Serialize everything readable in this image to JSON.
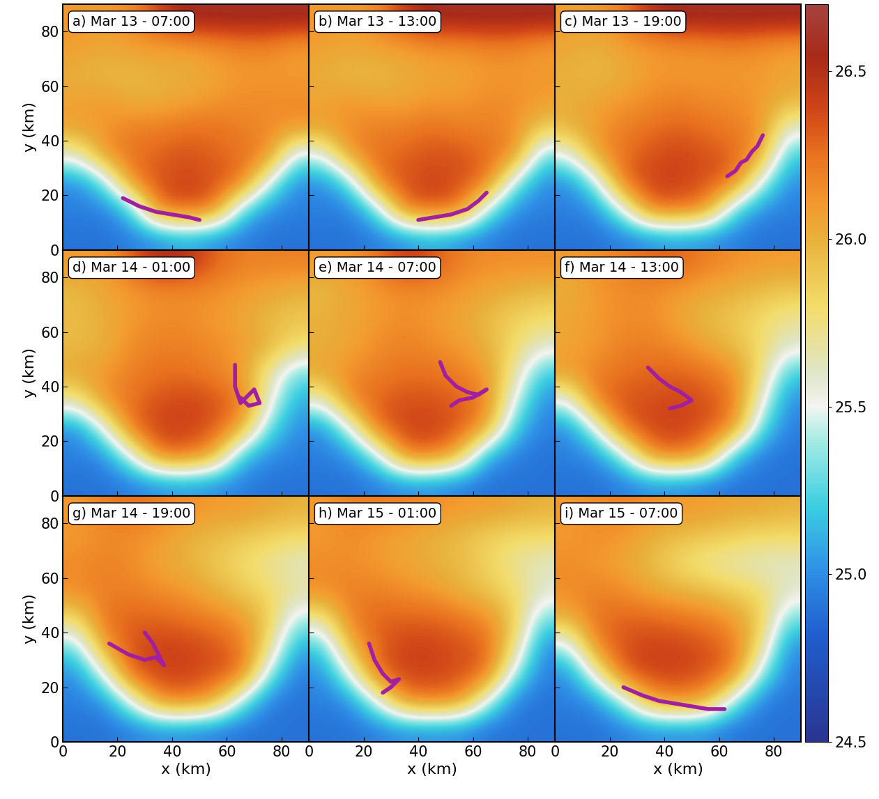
{
  "chart_data": {
    "type": "heatmap",
    "xlabel": "x (km)",
    "ylabel": "y (km)",
    "xlim": [
      0,
      90
    ],
    "ylim": [
      0,
      90
    ],
    "xticks": [
      0,
      20,
      40,
      60,
      80
    ],
    "yticks": [
      0,
      20,
      40,
      60,
      80
    ],
    "colorbar": {
      "range": [
        24.5,
        26.7
      ],
      "ticks": [
        24.5,
        25.0,
        25.5,
        26.0,
        26.5
      ]
    },
    "track_color": "#a020a0",
    "panels": [
      {
        "title": "a) Mar 13 - 07:00",
        "cells": [
          [
            26.1,
            26.1,
            26.15,
            26.4,
            26.6,
            26.6,
            26.6,
            26.6,
            26.6
          ],
          [
            26.1,
            26.05,
            26.1,
            26.1,
            26.1,
            26.15,
            26.2,
            26.2,
            26.1
          ],
          [
            26.0,
            25.95,
            25.95,
            26.0,
            26.0,
            26.05,
            26.1,
            26.1,
            26.1
          ],
          [
            26.05,
            26.1,
            26.0,
            26.0,
            26.05,
            26.1,
            26.15,
            26.15,
            26.15
          ],
          [
            26.1,
            26.1,
            26.2,
            26.2,
            26.25,
            26.25,
            26.2,
            26.15,
            26.15
          ],
          [
            25.6,
            26.15,
            26.25,
            26.3,
            26.35,
            26.3,
            26.25,
            26.2,
            25.4
          ],
          [
            25.0,
            25.3,
            26.2,
            26.35,
            26.4,
            26.35,
            26.3,
            25.5,
            25.0
          ],
          [
            24.95,
            24.95,
            25.2,
            26.3,
            26.35,
            26.3,
            25.3,
            25.0,
            24.95
          ],
          [
            24.9,
            24.9,
            24.95,
            25.0,
            25.1,
            25.0,
            24.95,
            24.9,
            24.9
          ]
        ],
        "track": {
          "x": [
            22,
            28,
            34,
            40,
            46,
            50
          ],
          "y": [
            19,
            16,
            14,
            13,
            12,
            11
          ]
        }
      },
      {
        "title": "b) Mar 13 - 13:00",
        "cells": [
          [
            26.1,
            26.1,
            26.15,
            26.45,
            26.6,
            26.6,
            26.6,
            26.6,
            26.6
          ],
          [
            26.1,
            26.05,
            26.1,
            26.1,
            26.15,
            26.15,
            26.2,
            26.2,
            26.1
          ],
          [
            26.0,
            25.95,
            25.95,
            26.0,
            26.05,
            26.05,
            26.1,
            26.1,
            26.1
          ],
          [
            26.05,
            26.1,
            26.05,
            26.05,
            26.1,
            26.1,
            26.15,
            26.15,
            26.1
          ],
          [
            26.1,
            26.15,
            26.2,
            26.2,
            26.25,
            26.2,
            26.2,
            26.15,
            25.9
          ],
          [
            25.5,
            26.15,
            26.25,
            26.3,
            26.35,
            26.35,
            26.25,
            26.2,
            25.3
          ],
          [
            25.0,
            25.3,
            26.25,
            26.35,
            26.4,
            26.35,
            26.3,
            25.4,
            25.0
          ],
          [
            24.95,
            24.95,
            25.3,
            26.3,
            26.35,
            26.3,
            25.4,
            25.0,
            24.95
          ],
          [
            24.9,
            24.9,
            24.95,
            25.0,
            25.1,
            25.0,
            24.95,
            24.9,
            24.9
          ]
        ],
        "track": {
          "x": [
            40,
            46,
            52,
            58,
            62,
            65
          ],
          "y": [
            11,
            12,
            13,
            15,
            18,
            21
          ]
        }
      },
      {
        "title": "c) Mar 13 - 19:00",
        "cells": [
          [
            26.1,
            26.1,
            26.2,
            26.5,
            26.6,
            26.6,
            26.6,
            26.6,
            26.6
          ],
          [
            26.05,
            26.0,
            26.1,
            26.1,
            26.15,
            26.15,
            26.2,
            26.15,
            26.1
          ],
          [
            26.0,
            25.95,
            26.0,
            26.1,
            26.1,
            26.1,
            26.1,
            26.1,
            26.05
          ],
          [
            26.0,
            26.05,
            26.1,
            26.15,
            26.2,
            26.15,
            26.15,
            26.1,
            26.0
          ],
          [
            26.0,
            26.1,
            26.2,
            26.25,
            26.3,
            26.25,
            26.2,
            26.15,
            25.6
          ],
          [
            25.5,
            26.1,
            26.25,
            26.35,
            26.4,
            26.35,
            26.3,
            26.1,
            25.2
          ],
          [
            25.0,
            25.4,
            26.3,
            26.4,
            26.4,
            26.35,
            26.3,
            25.5,
            25.0
          ],
          [
            24.95,
            25.0,
            25.5,
            26.3,
            26.3,
            26.2,
            25.3,
            25.0,
            24.95
          ],
          [
            24.9,
            24.9,
            24.95,
            25.0,
            25.05,
            25.0,
            24.95,
            24.9,
            24.9
          ]
        ],
        "track": {
          "x": [
            63,
            66,
            68,
            70,
            72,
            74,
            76
          ],
          "y": [
            27,
            29,
            32,
            33,
            36,
            38,
            42
          ]
        }
      },
      {
        "title": "d) Mar 14 - 01:00",
        "cells": [
          [
            26.1,
            26.1,
            26.3,
            26.55,
            26.5,
            26.3,
            26.2,
            26.2,
            26.2
          ],
          [
            25.95,
            26.05,
            26.1,
            26.15,
            26.15,
            26.15,
            26.1,
            26.05,
            26.0
          ],
          [
            25.95,
            26.0,
            26.1,
            26.15,
            26.15,
            26.1,
            26.05,
            25.95,
            25.9
          ],
          [
            25.95,
            26.0,
            26.15,
            26.2,
            26.2,
            26.15,
            26.1,
            26.0,
            25.8
          ],
          [
            26.05,
            26.1,
            26.2,
            26.25,
            26.25,
            26.2,
            26.1,
            25.7,
            25.3
          ],
          [
            25.7,
            26.15,
            26.25,
            26.35,
            26.4,
            26.35,
            26.25,
            25.6,
            25.1
          ],
          [
            25.0,
            25.5,
            26.3,
            26.4,
            26.4,
            26.35,
            26.1,
            25.3,
            25.0
          ],
          [
            24.95,
            25.0,
            25.5,
            26.3,
            26.3,
            26.1,
            25.2,
            25.0,
            24.95
          ],
          [
            24.9,
            24.9,
            24.95,
            25.0,
            25.05,
            25.0,
            24.95,
            24.9,
            24.9
          ]
        ],
        "track": {
          "x": [
            63,
            63,
            65,
            68,
            70,
            72,
            68,
            65
          ],
          "y": [
            48,
            40,
            34,
            37,
            39,
            34,
            33,
            36
          ]
        }
      },
      {
        "title": "e) Mar 14 - 07:00",
        "cells": [
          [
            26.1,
            26.1,
            26.25,
            26.45,
            26.35,
            26.2,
            26.15,
            26.15,
            26.15
          ],
          [
            25.95,
            26.05,
            26.1,
            26.15,
            26.15,
            26.1,
            26.05,
            26.0,
            25.95
          ],
          [
            26.0,
            26.05,
            26.1,
            26.15,
            26.1,
            26.05,
            25.95,
            25.85,
            25.8
          ],
          [
            26.0,
            26.05,
            26.15,
            26.2,
            26.15,
            26.1,
            26.0,
            25.8,
            25.6
          ],
          [
            26.05,
            26.15,
            26.2,
            26.25,
            26.25,
            26.2,
            26.1,
            25.7,
            25.2
          ],
          [
            25.6,
            26.2,
            26.3,
            26.35,
            26.35,
            26.3,
            26.2,
            25.5,
            25.0
          ],
          [
            25.0,
            25.5,
            26.3,
            26.4,
            26.4,
            26.35,
            26.1,
            25.2,
            24.95
          ],
          [
            24.95,
            25.0,
            25.4,
            26.25,
            26.3,
            26.0,
            25.1,
            24.95,
            24.9
          ],
          [
            24.9,
            24.9,
            24.95,
            25.0,
            25.0,
            24.95,
            24.9,
            24.9,
            24.9
          ]
        ],
        "track": {
          "x": [
            48,
            50,
            54,
            58,
            62,
            65,
            60,
            55,
            52
          ],
          "y": [
            49,
            44,
            40,
            38,
            37,
            39,
            36,
            35,
            33
          ]
        }
      },
      {
        "title": "f) Mar 14 - 13:00",
        "cells": [
          [
            26.1,
            26.15,
            26.2,
            26.3,
            26.3,
            26.2,
            26.15,
            26.1,
            26.1
          ],
          [
            26.0,
            26.1,
            26.15,
            26.15,
            26.1,
            26.05,
            26.0,
            25.95,
            25.9
          ],
          [
            26.05,
            26.1,
            26.15,
            26.15,
            26.05,
            25.95,
            25.9,
            25.8,
            25.7
          ],
          [
            26.05,
            26.1,
            26.2,
            26.2,
            26.15,
            26.05,
            25.95,
            25.8,
            25.6
          ],
          [
            26.1,
            26.2,
            26.25,
            26.3,
            26.3,
            26.25,
            26.15,
            25.8,
            25.2
          ],
          [
            25.5,
            26.25,
            26.35,
            26.35,
            26.4,
            26.35,
            26.25,
            25.6,
            25.0
          ],
          [
            25.0,
            25.5,
            26.3,
            26.4,
            26.4,
            26.35,
            26.2,
            25.3,
            24.95
          ],
          [
            24.95,
            25.0,
            25.4,
            26.2,
            26.3,
            26.1,
            25.2,
            24.95,
            24.9
          ],
          [
            24.9,
            24.9,
            24.95,
            25.0,
            25.0,
            24.95,
            24.9,
            24.9,
            24.9
          ]
        ],
        "track": {
          "x": [
            34,
            38,
            42,
            46,
            50,
            46,
            42
          ],
          "y": [
            47,
            43,
            40,
            38,
            35,
            33,
            32
          ]
        }
      },
      {
        "title": "g) Mar 14 - 19:00",
        "cells": [
          [
            26.1,
            26.2,
            26.25,
            26.2,
            26.15,
            26.1,
            26.1,
            26.05,
            26.0
          ],
          [
            26.1,
            26.15,
            26.15,
            26.1,
            26.0,
            25.95,
            25.9,
            25.85,
            25.8
          ],
          [
            26.15,
            26.2,
            26.15,
            26.05,
            26.0,
            25.9,
            25.8,
            25.7,
            25.6
          ],
          [
            26.15,
            26.2,
            26.2,
            26.15,
            26.1,
            26.0,
            25.9,
            25.8,
            25.7
          ],
          [
            25.8,
            26.25,
            26.3,
            26.3,
            26.25,
            26.2,
            26.1,
            25.9,
            25.4
          ],
          [
            25.3,
            26.1,
            26.35,
            26.4,
            26.4,
            26.35,
            26.25,
            25.8,
            25.1
          ],
          [
            25.0,
            25.5,
            26.35,
            26.4,
            26.4,
            26.35,
            26.3,
            25.4,
            24.95
          ],
          [
            24.95,
            25.0,
            25.5,
            26.2,
            26.25,
            26.1,
            25.4,
            24.95,
            24.9
          ],
          [
            24.9,
            24.9,
            24.95,
            25.0,
            25.0,
            24.95,
            24.9,
            24.9,
            24.9
          ]
        ],
        "track": {
          "x": [
            17,
            24,
            30,
            34,
            37,
            33,
            30
          ],
          "y": [
            36,
            32,
            30,
            31,
            28,
            36,
            40
          ]
        }
      },
      {
        "title": "h) Mar 15 - 01:00",
        "cells": [
          [
            26.1,
            26.2,
            26.2,
            26.2,
            26.15,
            26.1,
            26.1,
            26.05,
            26.0
          ],
          [
            26.1,
            26.15,
            26.1,
            26.05,
            26.0,
            25.95,
            25.85,
            25.8,
            25.8
          ],
          [
            26.15,
            26.15,
            26.1,
            26.05,
            26.0,
            25.95,
            25.85,
            25.7,
            25.6
          ],
          [
            26.15,
            26.2,
            26.2,
            26.15,
            26.1,
            26.0,
            25.9,
            25.8,
            25.6
          ],
          [
            25.7,
            26.2,
            26.3,
            26.3,
            26.3,
            26.25,
            26.15,
            25.9,
            25.3
          ],
          [
            25.2,
            26.0,
            26.3,
            26.4,
            26.4,
            26.35,
            26.3,
            25.8,
            25.0
          ],
          [
            25.0,
            25.5,
            26.3,
            26.4,
            26.4,
            26.35,
            26.3,
            25.4,
            24.95
          ],
          [
            24.95,
            25.0,
            25.5,
            26.2,
            26.25,
            26.2,
            25.5,
            24.95,
            24.9
          ],
          [
            24.9,
            24.9,
            24.95,
            25.0,
            25.0,
            25.0,
            24.9,
            24.9,
            24.9
          ]
        ],
        "track": {
          "x": [
            22,
            24,
            27,
            30,
            33,
            30,
            27
          ],
          "y": [
            36,
            30,
            25,
            22,
            23,
            20,
            18
          ]
        }
      },
      {
        "title": "i) Mar 15 - 07:00",
        "cells": [
          [
            26.1,
            26.15,
            26.2,
            26.15,
            26.1,
            26.1,
            26.05,
            26.05,
            26.0
          ],
          [
            26.1,
            26.15,
            26.1,
            26.0,
            25.95,
            25.9,
            25.85,
            25.8,
            25.8
          ],
          [
            26.15,
            26.1,
            26.05,
            25.95,
            25.8,
            25.7,
            25.65,
            25.6,
            25.6
          ],
          [
            26.15,
            26.2,
            26.15,
            26.05,
            26.0,
            25.95,
            25.85,
            25.8,
            25.6
          ],
          [
            26.0,
            26.25,
            26.3,
            26.3,
            26.25,
            26.2,
            26.1,
            25.9,
            25.3
          ],
          [
            25.4,
            26.2,
            26.35,
            26.4,
            26.4,
            26.35,
            26.25,
            25.8,
            25.0
          ],
          [
            25.0,
            25.6,
            26.35,
            26.4,
            26.4,
            26.35,
            26.25,
            25.4,
            24.95
          ],
          [
            24.95,
            25.0,
            25.4,
            26.1,
            26.2,
            26.1,
            25.4,
            24.95,
            24.9
          ],
          [
            24.9,
            24.9,
            24.95,
            25.0,
            25.0,
            25.0,
            24.9,
            24.9,
            24.9
          ]
        ],
        "track": {
          "x": [
            25,
            32,
            38,
            44,
            50,
            56,
            62
          ],
          "y": [
            20,
            17,
            15,
            14,
            13,
            12,
            12
          ]
        }
      }
    ]
  }
}
